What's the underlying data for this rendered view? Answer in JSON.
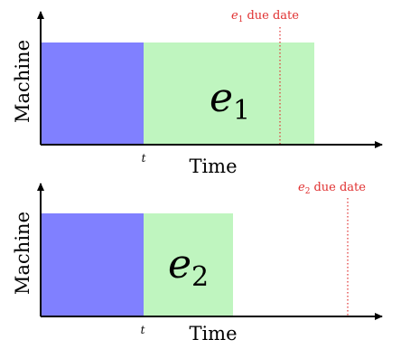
{
  "panels": [
    {
      "ylabel": "Machine",
      "xlabel": "Time",
      "t_label": "t",
      "job_label_main": "e",
      "job_label_sub": "1",
      "due_label_main": "e",
      "due_label_sub": "1",
      "due_label_text": "due date"
    },
    {
      "ylabel": "Machine",
      "xlabel": "Time",
      "t_label": "t",
      "job_label_main": "e",
      "job_label_sub": "2",
      "due_label_main": "e",
      "due_label_sub": "2",
      "due_label_text": "due date"
    }
  ],
  "colors": {
    "prior_work": "#8080ff",
    "job": "#bff5bf",
    "due": "#e03030",
    "axis": "#000000"
  }
}
